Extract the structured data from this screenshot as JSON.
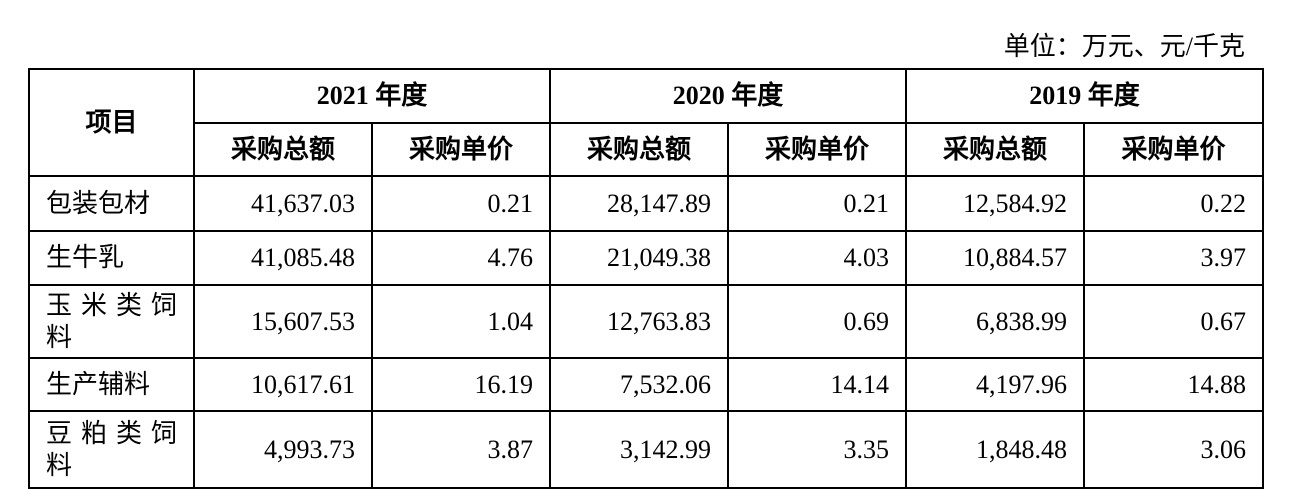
{
  "unit": "单位：万元、元/千克",
  "table": {
    "item_header": "项目",
    "years": [
      "2021 年度",
      "2020 年度",
      "2019 年度"
    ],
    "subheaders": [
      "采购总额",
      "采购单价",
      "采购总额",
      "采购单价",
      "采购总额",
      "采购单价"
    ],
    "rows": [
      [
        "包装包材",
        "41,637.03",
        "0.21",
        "28,147.89",
        "0.21",
        "12,584.92",
        "0.22"
      ],
      [
        "生牛乳",
        "41,085.48",
        "4.76",
        "21,049.38",
        "4.03",
        "10,884.57",
        "3.97"
      ],
      [
        "玉米类饲料",
        "15,607.53",
        "1.04",
        "12,763.83",
        "0.69",
        "6,838.99",
        "0.67"
      ],
      [
        "生产辅料",
        "10,617.61",
        "16.19",
        "7,532.06",
        "14.14",
        "4,197.96",
        "14.88"
      ],
      [
        "豆粕类饲料",
        "4,993.73",
        "3.87",
        "3,142.99",
        "3.35",
        "1,848.48",
        "3.06"
      ]
    ]
  }
}
